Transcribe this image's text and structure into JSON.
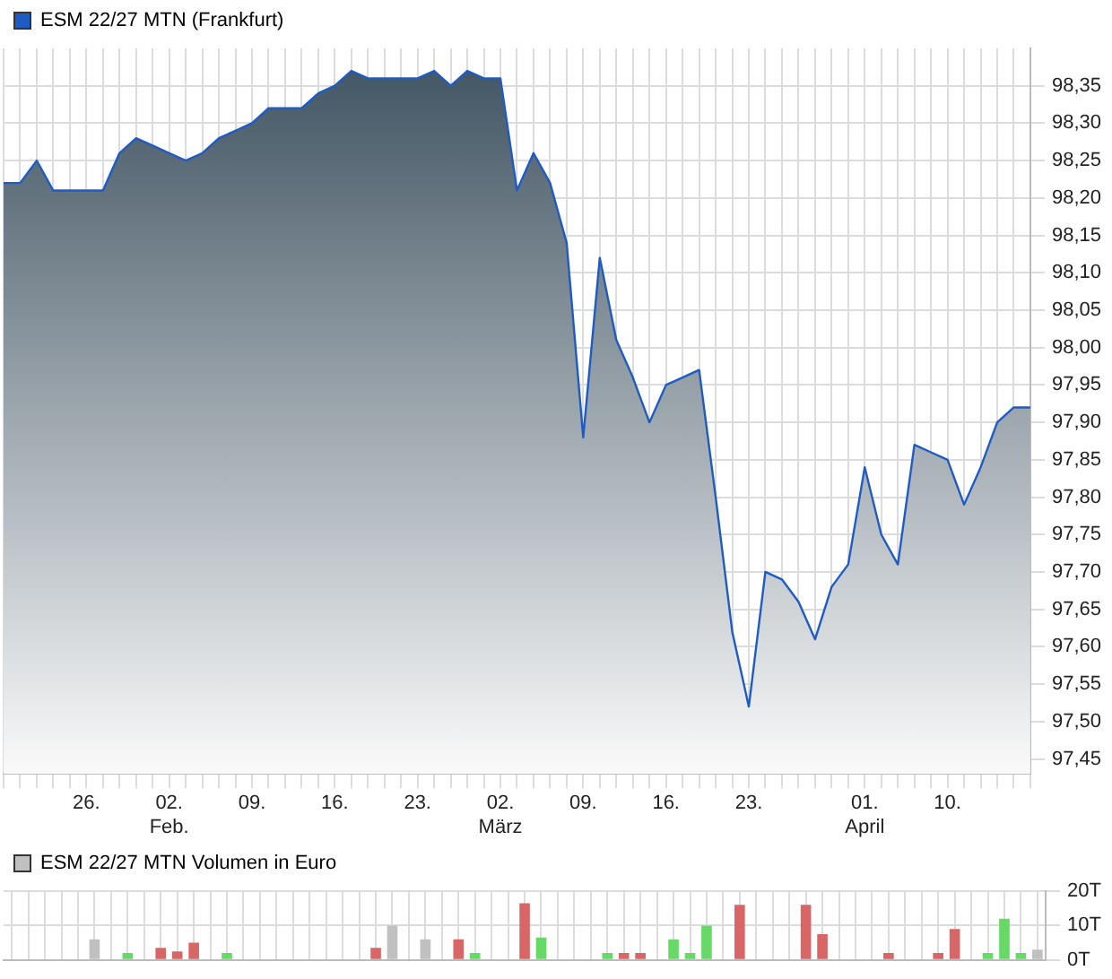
{
  "chart_data": [
    {
      "type": "area",
      "categories": [
        null,
        null,
        null,
        null,
        null,
        "26.",
        null,
        null,
        null,
        null,
        "02.\nFeb.",
        null,
        null,
        null,
        null,
        "09.",
        null,
        null,
        null,
        null,
        "16.",
        null,
        null,
        null,
        null,
        "23.",
        null,
        null,
        null,
        null,
        "02.\nMärz",
        null,
        null,
        null,
        null,
        "09.",
        null,
        null,
        null,
        null,
        "16.",
        null,
        null,
        null,
        null,
        "23.",
        null,
        null,
        null,
        null,
        null,
        null,
        "01.\nApril",
        null,
        null,
        null,
        null,
        "10.",
        null,
        null,
        null,
        null,
        null
      ],
      "series": [
        {
          "name": "ESM 22/27 MTN (Frankfurt)",
          "color": "#1f5bc4",
          "values": [
            98.22,
            98.22,
            98.25,
            98.21,
            98.21,
            98.21,
            98.21,
            98.26,
            98.28,
            98.27,
            98.26,
            98.25,
            98.26,
            98.28,
            98.29,
            98.3,
            98.32,
            98.32,
            98.32,
            98.34,
            98.35,
            98.37,
            98.36,
            98.36,
            98.36,
            98.36,
            98.37,
            98.35,
            98.37,
            98.36,
            98.36,
            98.21,
            98.26,
            98.22,
            98.14,
            97.88,
            98.12,
            98.01,
            97.96,
            97.9,
            97.95,
            97.96,
            97.97,
            97.8,
            97.62,
            97.52,
            97.7,
            97.69,
            97.66,
            97.61,
            97.68,
            97.71,
            97.84,
            97.75,
            97.71,
            97.87,
            97.86,
            97.85,
            97.79,
            97.84,
            97.9,
            97.92,
            97.92
          ]
        }
      ],
      "ylim": [
        97.43,
        98.4
      ],
      "yticks": [
        {
          "value": 97.45,
          "label": "97,45"
        },
        {
          "value": 97.5,
          "label": "97,50"
        },
        {
          "value": 97.55,
          "label": "97,55"
        },
        {
          "value": 97.6,
          "label": "97,60"
        },
        {
          "value": 97.65,
          "label": "97,65"
        },
        {
          "value": 97.7,
          "label": "97,70"
        },
        {
          "value": 97.75,
          "label": "97,75"
        },
        {
          "value": 97.8,
          "label": "97,80"
        },
        {
          "value": 97.85,
          "label": "97,85"
        },
        {
          "value": 97.9,
          "label": "97,90"
        },
        {
          "value": 97.95,
          "label": "97,95"
        },
        {
          "value": 98.0,
          "label": "98,00"
        },
        {
          "value": 98.05,
          "label": "98,05"
        },
        {
          "value": 98.1,
          "label": "98,10"
        },
        {
          "value": 98.15,
          "label": "98,15"
        },
        {
          "value": 98.2,
          "label": "98,20"
        },
        {
          "value": 98.25,
          "label": "98,25"
        },
        {
          "value": 98.3,
          "label": "98,30"
        },
        {
          "value": 98.35,
          "label": "98,35"
        }
      ],
      "grid": true,
      "legend": "top left"
    },
    {
      "type": "bar",
      "categories": [
        null,
        null,
        null,
        null,
        null,
        null,
        null,
        null,
        null,
        null,
        null,
        null,
        null,
        null,
        null,
        null,
        null,
        null,
        null,
        null,
        null,
        null,
        null,
        null,
        null,
        null,
        null,
        null,
        null,
        null,
        null,
        null,
        null,
        null,
        null,
        null,
        null,
        null,
        null,
        null,
        null,
        null,
        null,
        null,
        null,
        null,
        null,
        null,
        null,
        null,
        null,
        null,
        null,
        null,
        null,
        null,
        null,
        null,
        null,
        null,
        null,
        null,
        null
      ],
      "series": [
        {
          "name": "ESM 22/27 MTN Volumen in Euro",
          "color": "#c0c0c0",
          "colors": [
            "#c0c0c0",
            "#c0c0c0",
            "#c0c0c0",
            "#c0c0c0",
            "#c0c0c0",
            "#c0c0c0",
            "#c0c0c0",
            "#66d966",
            "#c0c0c0",
            "#d96666",
            "#d96666",
            "#d96666",
            "#c0c0c0",
            "#66d966",
            "#c0c0c0",
            "#c0c0c0",
            "#c0c0c0",
            "#c0c0c0",
            "#c0c0c0",
            "#c0c0c0",
            "#c0c0c0",
            "#c0c0c0",
            "#d96666",
            "#c0c0c0",
            "#c0c0c0",
            "#c0c0c0",
            "#c0c0c0",
            "#d96666",
            "#66d966",
            "#c0c0c0",
            "#c0c0c0",
            "#d96666",
            "#66d966",
            "#c0c0c0",
            "#c0c0c0",
            "#c0c0c0",
            "#66d966",
            "#d96666",
            "#d96666",
            "#c0c0c0",
            "#66d966",
            "#66d966",
            "#66d966",
            "#c0c0c0",
            "#d96666",
            "#c0c0c0",
            "#c0c0c0",
            "#c0c0c0",
            "#d96666",
            "#d96666",
            "#c0c0c0",
            "#c0c0c0",
            "#c0c0c0",
            "#d96666",
            "#c0c0c0",
            "#c0c0c0",
            "#d96666",
            "#d96666",
            "#c0c0c0",
            "#66d966",
            "#66d966",
            "#66d966",
            "#c0c0c0"
          ],
          "values": [
            null,
            null,
            null,
            null,
            null,
            6,
            null,
            2,
            null,
            3.5,
            2.5,
            5,
            null,
            2,
            null,
            null,
            null,
            null,
            null,
            null,
            null,
            null,
            3.5,
            10,
            null,
            6,
            null,
            6,
            2,
            null,
            null,
            16.5,
            6.5,
            null,
            null,
            null,
            2,
            2,
            2,
            null,
            6,
            2,
            10,
            null,
            16,
            null,
            null,
            null,
            16,
            7.5,
            null,
            null,
            null,
            2,
            null,
            null,
            2,
            9,
            null,
            2,
            12,
            2,
            3
          ]
        }
      ],
      "ylim": [
        0,
        20
      ],
      "yticks": [
        {
          "value": 0,
          "label": "0T"
        },
        {
          "value": 10,
          "label": "10T"
        },
        {
          "value": 20,
          "label": "20T"
        }
      ],
      "grid": true,
      "legend": "top left",
      "tick_labels": "y"
    }
  ]
}
